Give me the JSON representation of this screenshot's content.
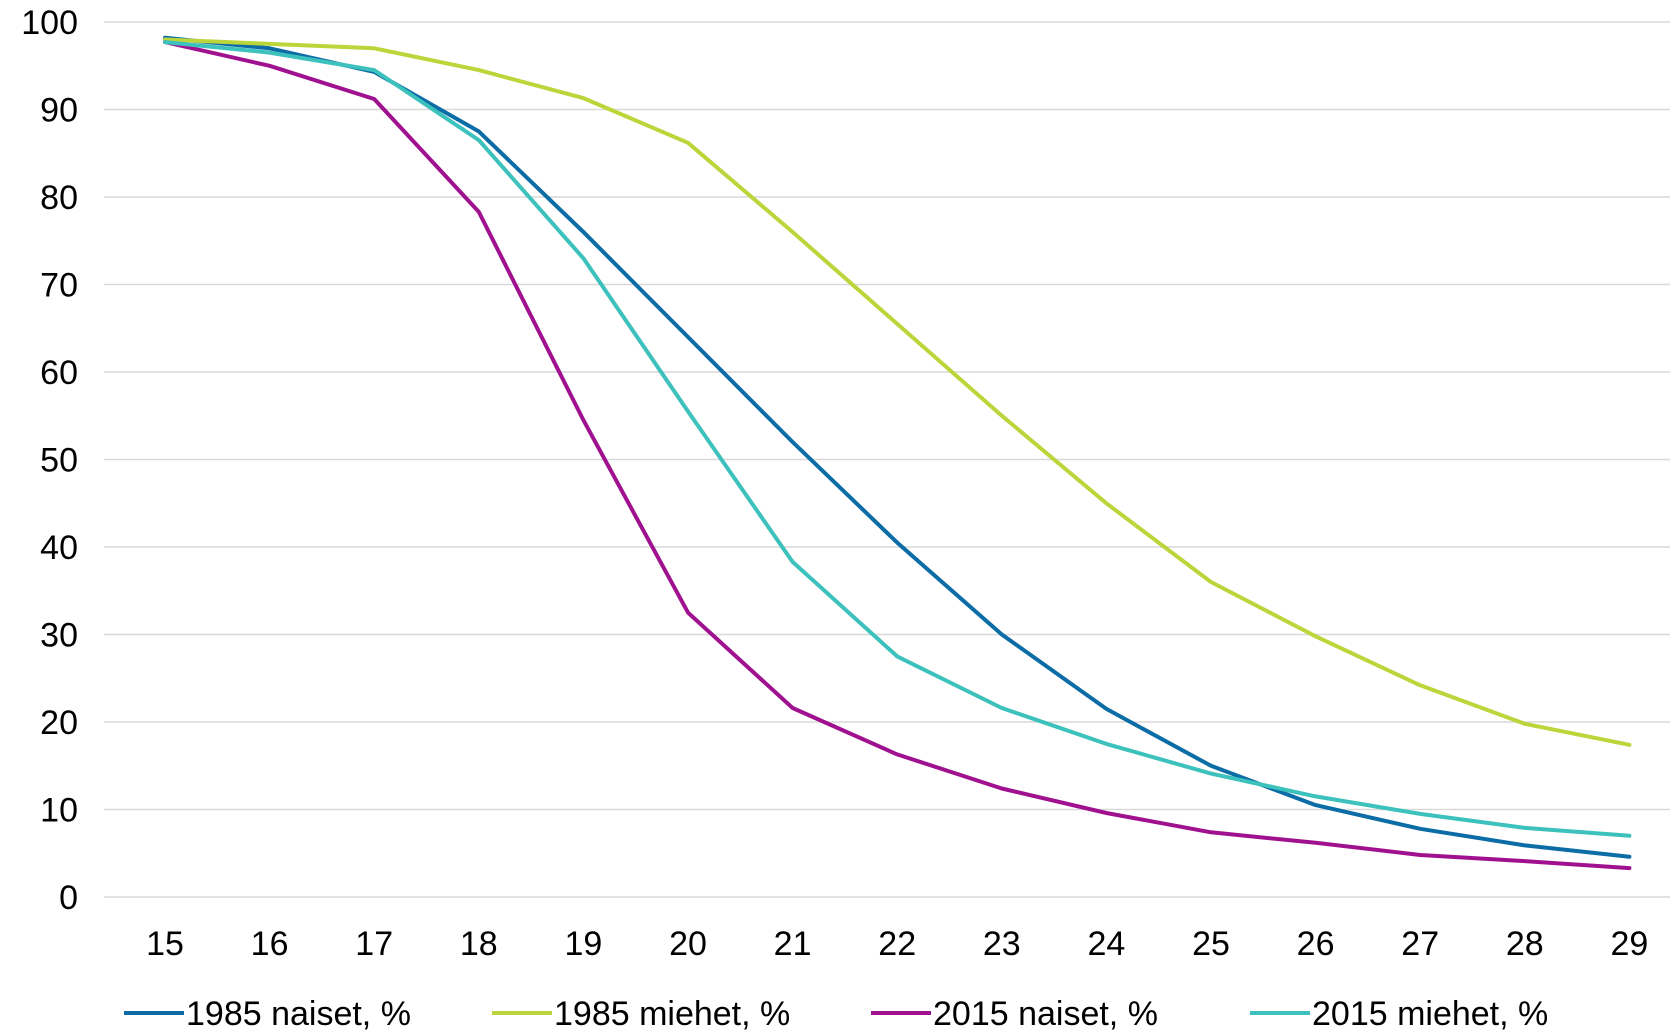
{
  "chart_data": {
    "type": "line",
    "title": "",
    "xlabel": "",
    "ylabel": "",
    "x": [
      15,
      16,
      17,
      18,
      19,
      20,
      21,
      22,
      23,
      24,
      25,
      26,
      27,
      28,
      29
    ],
    "ylim": [
      0,
      100
    ],
    "yticks": [
      0,
      10,
      20,
      30,
      40,
      50,
      60,
      70,
      80,
      90,
      100
    ],
    "grid": "horizontal",
    "legend_position": "bottom",
    "series": [
      {
        "name": "1985 naiset, %",
        "color": "#0B6CA6",
        "values": [
          98.2,
          97.0,
          94.3,
          87.5,
          76.0,
          64.0,
          52.0,
          40.5,
          30.0,
          21.5,
          15.0,
          10.5,
          7.8,
          5.9,
          4.6
        ]
      },
      {
        "name": "1985 miehet, %",
        "color": "#BBD53A",
        "values": [
          98.0,
          97.5,
          97.0,
          94.5,
          91.3,
          86.2,
          76.0,
          65.5,
          55.0,
          45.0,
          36.0,
          29.8,
          24.2,
          19.8,
          17.4
        ]
      },
      {
        "name": "2015 naiset, %",
        "color": "#A0118F",
        "values": [
          97.7,
          95.0,
          91.2,
          78.3,
          54.5,
          32.5,
          21.6,
          16.3,
          12.4,
          9.6,
          7.4,
          6.2,
          4.8,
          4.1,
          3.3
        ]
      },
      {
        "name": "2015 miehet, %",
        "color": "#3CC1BC",
        "values": [
          97.7,
          96.5,
          94.5,
          86.5,
          73.0,
          55.5,
          38.3,
          27.5,
          21.6,
          17.5,
          14.1,
          11.5,
          9.5,
          7.9,
          7.0
        ]
      }
    ]
  }
}
